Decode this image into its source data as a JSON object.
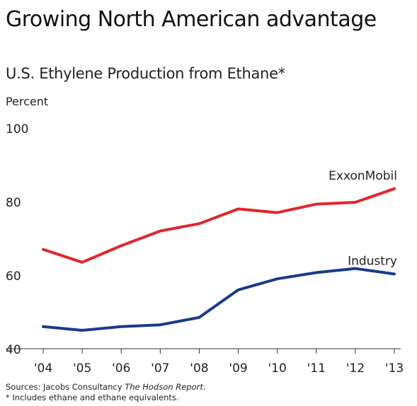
{
  "title": "Growing North American advantage",
  "subtitle": "U.S. Ethylene Production from Ethane*",
  "unit_label": "Percent",
  "footer": {
    "sources_prefix": "Sources:  Jacobs Consultancy ",
    "sources_title": "The Hodson Report",
    "sources_suffix": ".",
    "note": "* Includes ethane and ethane equivalents."
  },
  "chart_data": {
    "type": "line",
    "title": "U.S. Ethylene Production from Ethane*",
    "ylabel": "Percent",
    "xlabel": "",
    "categories": [
      "'04",
      "'05",
      "'06",
      "'07",
      "'08",
      "'09",
      "'10",
      "'11",
      "'12",
      "'13"
    ],
    "ylim": [
      40,
      100
    ],
    "yticks": [
      40,
      60,
      80,
      100
    ],
    "grid": false,
    "series": [
      {
        "name": "ExxonMobil",
        "color": "#e0272f",
        "values": [
          67,
          63.5,
          68,
          72,
          74,
          78,
          77,
          79.3,
          79.8,
          83.5
        ]
      },
      {
        "name": "Industry",
        "color": "#1a3a8a",
        "values": [
          46,
          45,
          46,
          46.5,
          48.5,
          56,
          59,
          60.7,
          61.8,
          60.3
        ]
      }
    ]
  }
}
